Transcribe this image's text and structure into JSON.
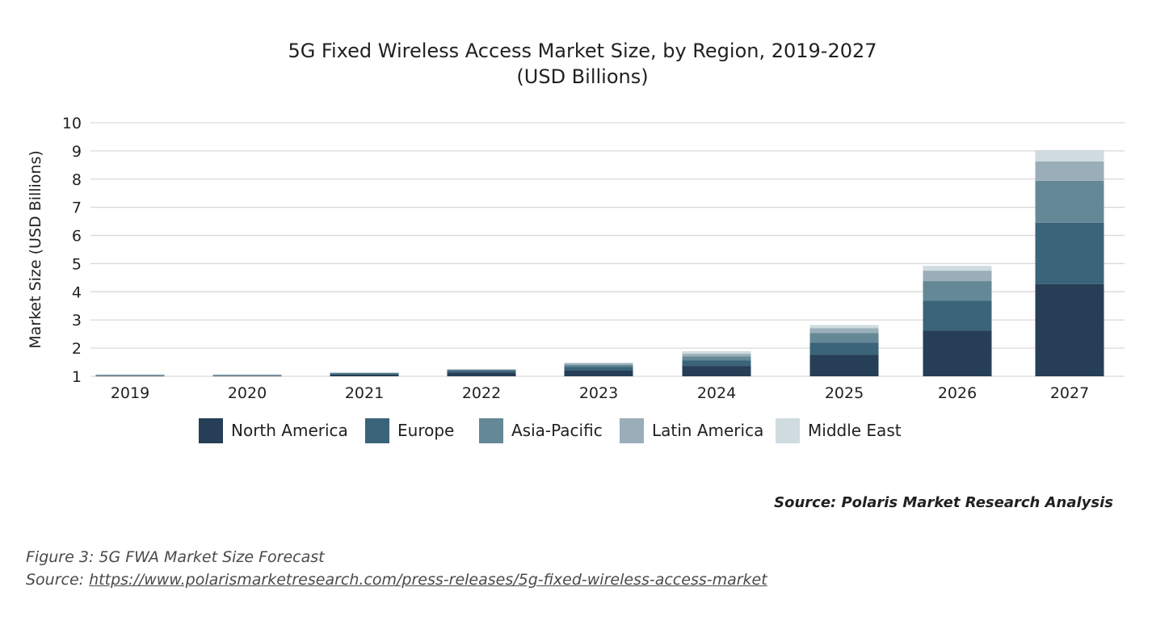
{
  "chart_data": {
    "type": "bar",
    "stacked": true,
    "title": "5G Fixed Wireless Access Market Size, by Region, 2019-2027",
    "subtitle": "(USD Billions)",
    "xlabel": "",
    "ylabel": "Market Size (USD Billions)",
    "ylim": [
      1,
      10
    ],
    "baseline": 1,
    "yticks": [
      "1",
      "2",
      "3",
      "4",
      "5",
      "6",
      "7",
      "8",
      "9",
      "10"
    ],
    "grid": true,
    "legend_position": "bottom",
    "categories": [
      "2019",
      "2020",
      "2021",
      "2022",
      "2023",
      "2024",
      "2025",
      "2026",
      "2027"
    ],
    "series": [
      {
        "name": "North America",
        "color": "#263f56",
        "values": [
          0.02,
          0.02,
          0.06,
          0.14,
          0.22,
          0.37,
          0.77,
          1.63,
          3.27
        ]
      },
      {
        "name": "Europe",
        "color": "#3a6479",
        "values": [
          0.01,
          0.01,
          0.05,
          0.06,
          0.11,
          0.2,
          0.43,
          1.06,
          2.18
        ]
      },
      {
        "name": "Asia-Pacific",
        "color": "#648896",
        "values": [
          0.01,
          0.01,
          0.01,
          0.03,
          0.08,
          0.14,
          0.34,
          0.69,
          1.49
        ]
      },
      {
        "name": "Latin America",
        "color": "#9aaeb9",
        "values": [
          0.01,
          0.01,
          0.01,
          0.02,
          0.05,
          0.09,
          0.17,
          0.37,
          0.69
        ]
      },
      {
        "name": "Middle East",
        "color": "#cfdbdf",
        "values": [
          0.03,
          0.03,
          0.01,
          0.01,
          0.03,
          0.09,
          0.11,
          0.17,
          0.4
        ]
      }
    ]
  },
  "source_note": "Source: Polaris Market Research Analysis",
  "caption": {
    "figure": "Figure 3: 5G FWA Market Size Forecast",
    "source_prefix": "Source: ",
    "source_link": "https://www.polarismarketresearch.com/press-releases/5g-fixed-wireless-access-market"
  }
}
